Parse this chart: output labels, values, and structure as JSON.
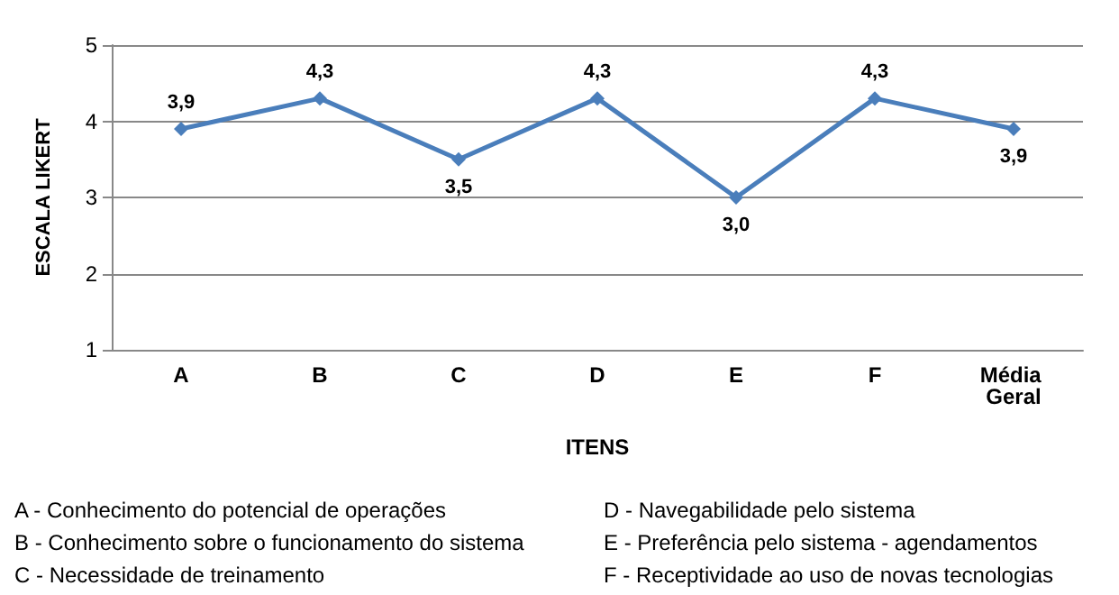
{
  "chart_data": {
    "type": "line",
    "xlabel": "ITENS",
    "ylabel": "ESCALA LIKERT",
    "categories": [
      "A",
      "B",
      "C",
      "D",
      "E",
      "F",
      "Média Geral"
    ],
    "series": [
      {
        "color": "#4a7ebb",
        "values": [
          3.9,
          4.3,
          3.5,
          4.3,
          3.0,
          4.3,
          3.9
        ],
        "value_labels": [
          "3,9",
          "4,3",
          "3,5",
          "4,3",
          "3,0",
          "4,3",
          "3,9"
        ]
      }
    ],
    "ylim": [
      1,
      5
    ],
    "yticks": [
      1,
      2,
      3,
      4,
      5
    ],
    "grid": "y",
    "marker": "diamond",
    "line_style": "solid",
    "annotations": [
      "A - Conhecimento do potencial de operações",
      "B - Conhecimento sobre o funcionamento do sistema",
      "C - Necessidade de treinamento",
      "D - Navegabilidade pelo sistema",
      "E - Preferência pelo sistema - agendamentos",
      "F - Receptividade ao uso de novas tecnologias"
    ]
  }
}
